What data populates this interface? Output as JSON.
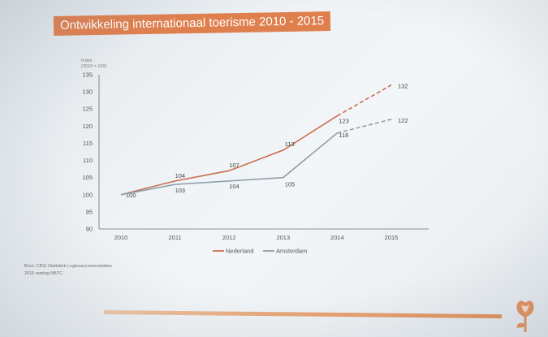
{
  "slide": {
    "title": "Ontwikkeling internationaal toerisme 2010 - 2015",
    "source_line1": "Bron: CBS/ Statistiek Logiesaccommodaties",
    "source_line2": "2015 raming NBTC"
  },
  "colors": {
    "nederland": "#c96f4f",
    "amsterdam": "#8e9eaa",
    "title_bg": "#e07f4e",
    "axis": "#6b6b6b"
  },
  "chart_data": {
    "type": "line",
    "ylabel_line1": "Index",
    "ylabel_line2": "(2010 = 100)",
    "ylim": [
      90,
      135
    ],
    "yticks": [
      90,
      95,
      100,
      105,
      110,
      115,
      120,
      125,
      130,
      135
    ],
    "categories": [
      "2010",
      "2011",
      "2012",
      "2013",
      "2014",
      "2015"
    ],
    "projected_from": "2014",
    "series": [
      {
        "name": "Nederland",
        "values": [
          100,
          104,
          107,
          113,
          123,
          132
        ]
      },
      {
        "name": "Amsterdam",
        "values": [
          100,
          103,
          104,
          105,
          118,
          122
        ]
      }
    ],
    "legend": "bottom"
  }
}
